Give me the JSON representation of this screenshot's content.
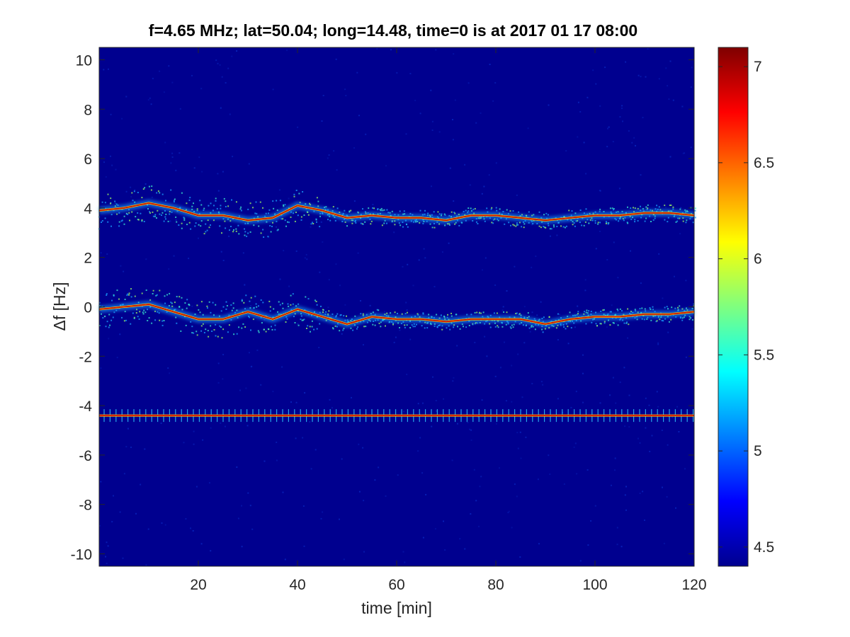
{
  "chart_data": {
    "type": "heatmap",
    "title": "f=4.65 MHz;  lat=50.04; long=14.48, time=0 is at 2017 01 17 08:00",
    "xlabel": "time [min]",
    "ylabel": "Δf [Hz]",
    "xlim": [
      0,
      120
    ],
    "ylim": [
      -10.5,
      10.5
    ],
    "xticks": [
      20,
      40,
      60,
      80,
      100,
      120
    ],
    "yticks": [
      10,
      8,
      6,
      4,
      2,
      0,
      -2,
      -4,
      -6,
      -8,
      -10
    ],
    "grid": false,
    "colormap": "jet",
    "background_color": "#00008f",
    "colorbar": {
      "clim": [
        4.4,
        7.1
      ],
      "ticks": [
        4.5,
        5,
        5.5,
        6,
        6.5,
        7
      ],
      "placement": "right"
    },
    "traces": [
      {
        "t": [
          0,
          5,
          10,
          15,
          20,
          25,
          30,
          35,
          40,
          45,
          50,
          55,
          60,
          65,
          70,
          75,
          80,
          85,
          90,
          95,
          100,
          105,
          110,
          115,
          120
        ],
        "f": [
          3.9,
          4.0,
          4.2,
          4.0,
          3.7,
          3.7,
          3.5,
          3.6,
          4.1,
          3.9,
          3.6,
          3.7,
          3.6,
          3.6,
          3.5,
          3.7,
          3.7,
          3.6,
          3.5,
          3.6,
          3.7,
          3.7,
          3.8,
          3.8,
          3.7
        ]
      },
      {
        "t": [
          0,
          5,
          10,
          15,
          20,
          25,
          30,
          35,
          40,
          45,
          50,
          55,
          60,
          65,
          70,
          75,
          80,
          85,
          90,
          95,
          100,
          105,
          110,
          115,
          120
        ],
        "f": [
          -0.1,
          0.0,
          0.1,
          -0.2,
          -0.5,
          -0.5,
          -0.2,
          -0.5,
          -0.1,
          -0.4,
          -0.7,
          -0.4,
          -0.5,
          -0.5,
          -0.6,
          -0.5,
          -0.5,
          -0.5,
          -0.7,
          -0.5,
          -0.4,
          -0.4,
          -0.3,
          -0.3,
          -0.2
        ]
      },
      {
        "t": [
          0,
          120
        ],
        "f": [
          -4.4,
          -4.4
        ]
      }
    ]
  }
}
